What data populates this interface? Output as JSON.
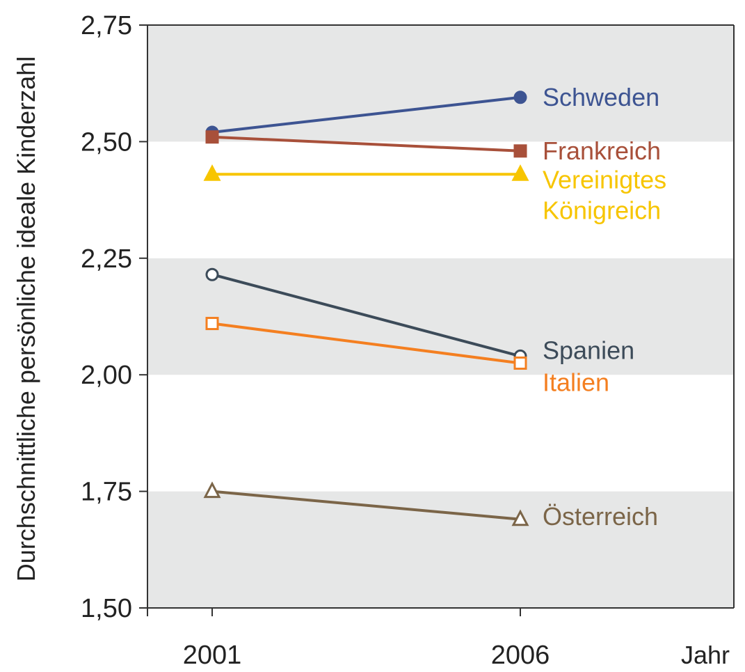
{
  "chart_data": {
    "type": "line",
    "title": "",
    "xlabel": "Jahr",
    "ylabel": "Durchschnittliche persönliche ideale Kinderzahl",
    "x": [
      "2001",
      "2006"
    ],
    "ylim": [
      1.5,
      2.75
    ],
    "yticks": [
      "1,50",
      "1,75",
      "2,00",
      "2,25",
      "2,50",
      "2,75"
    ],
    "ytick_values": [
      1.5,
      1.75,
      2.0,
      2.25,
      2.5,
      2.75
    ],
    "grid": "alternating horizontal bands",
    "legend": "direct labels at right end of lines",
    "series": [
      {
        "name": "Schweden",
        "values": [
          2.52,
          2.595
        ],
        "color": "#3d5492",
        "marker": "circle",
        "filled": true,
        "label_lines": [
          "Schweden"
        ]
      },
      {
        "name": "Frankreich",
        "values": [
          2.51,
          2.48
        ],
        "color": "#a8503a",
        "marker": "square",
        "filled": true,
        "label_lines": [
          "Frankreich"
        ]
      },
      {
        "name": "Vereinigtes Königreich",
        "values": [
          2.43,
          2.43
        ],
        "color": "#f7c500",
        "marker": "triangle",
        "filled": true,
        "label_lines": [
          "Vereinigtes",
          "Königreich"
        ]
      },
      {
        "name": "Spanien",
        "values": [
          2.215,
          2.04
        ],
        "color": "#3c4b59",
        "marker": "circle",
        "filled": false,
        "label_lines": [
          "Spanien"
        ]
      },
      {
        "name": "Italien",
        "values": [
          2.11,
          2.025
        ],
        "color": "#f47f20",
        "marker": "square",
        "filled": false,
        "label_lines": [
          "Italien"
        ]
      },
      {
        "name": "Österreich",
        "values": [
          1.75,
          1.69
        ],
        "color": "#7b6548",
        "marker": "triangle",
        "filled": false,
        "label_lines": [
          "Österreich"
        ]
      }
    ]
  }
}
